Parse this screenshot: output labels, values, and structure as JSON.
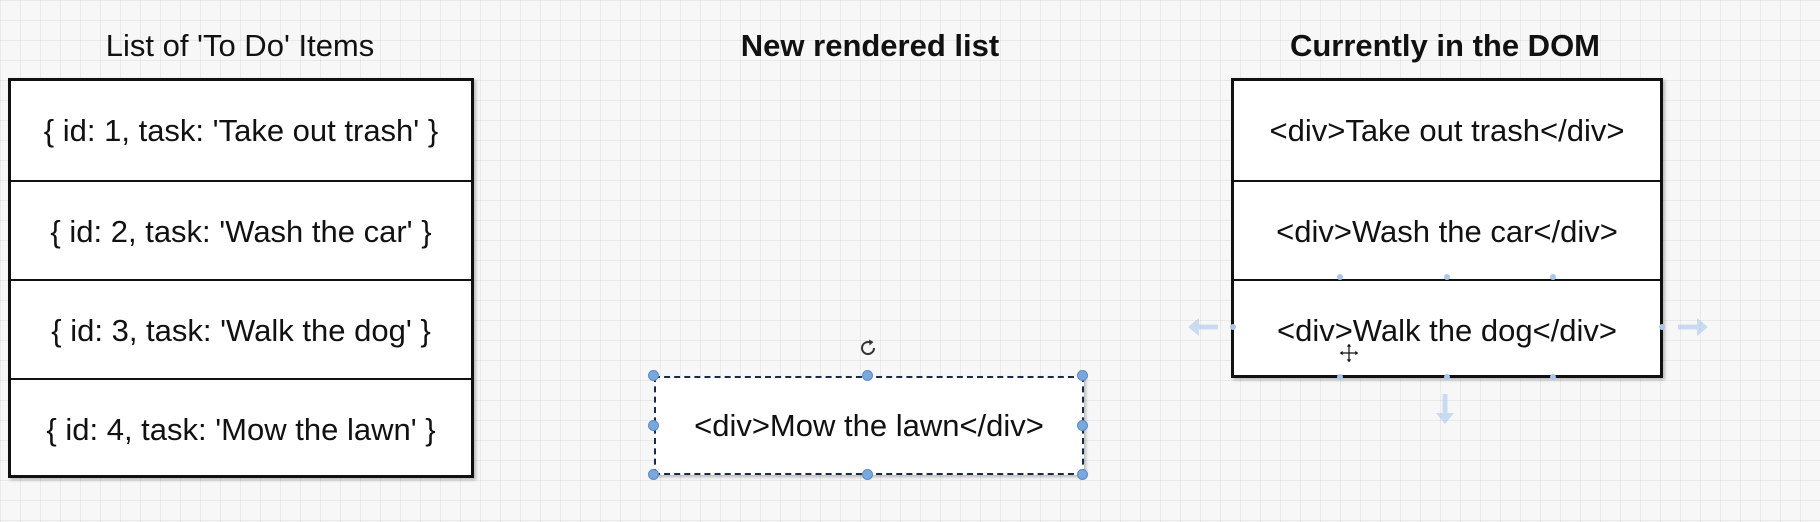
{
  "columns": {
    "todo_items": {
      "title": "List of 'To Do' Items",
      "rows": [
        "{ id: 1, task: 'Take out trash' }",
        "{ id: 2, task: 'Wash the car' }",
        "{ id: 3, task: 'Walk the dog' }",
        "{ id: 4, task: 'Mow the lawn' }"
      ]
    },
    "new_rendered_list": {
      "title": "New rendered list",
      "rows": [
        "<div>Mow the lawn</div>"
      ]
    },
    "currently_in_dom": {
      "title": "Currently in the DOM",
      "rows": [
        "<div>Take out trash</div>",
        "<div>Wash the car</div>",
        "<div>Walk the dog</div>"
      ]
    }
  },
  "colors": {
    "selection_handle": "#7aa7dc",
    "border": "#111111",
    "background": "#f7f7f7"
  },
  "icons": [
    "rotate-icon",
    "move-cursor-icon",
    "arrow-left-icon",
    "arrow-right-icon",
    "arrow-down-icon"
  ]
}
